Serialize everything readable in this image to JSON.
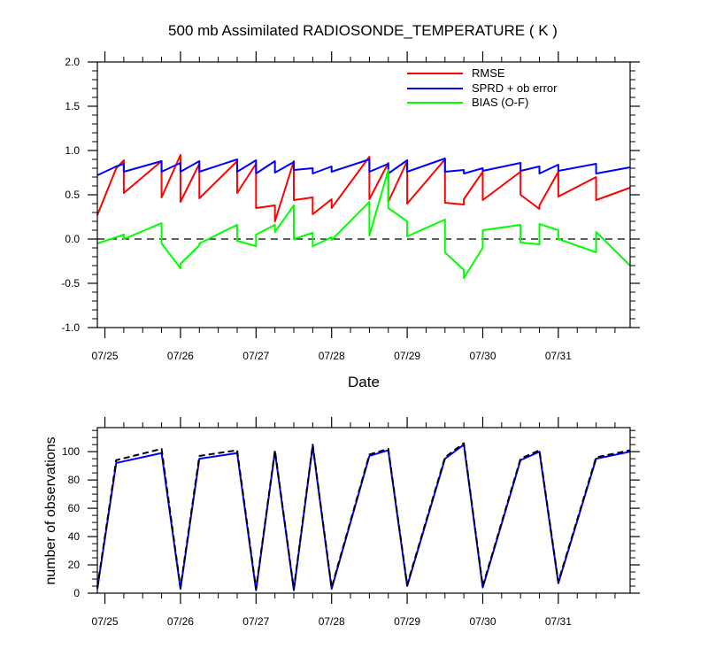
{
  "chart_data": [
    {
      "type": "line",
      "title": "500 mb Assimilated RADIOSONDE_TEMPERATURE ( K )",
      "xlabel": "Date",
      "ylabel": "",
      "xlim": [
        -0.1,
        6.95
      ],
      "ylim": [
        -1.0,
        2.0
      ],
      "yticks": [
        -1.0,
        -0.5,
        0.0,
        0.5,
        1.0,
        1.5,
        2.0
      ],
      "ytick_labels": [
        "-1.0",
        "-0.5",
        "0.0",
        "0.5",
        "1.0",
        "1.5",
        "2.0"
      ],
      "xticks": [
        0,
        1,
        2,
        3,
        4,
        5,
        6
      ],
      "xtick_labels": [
        "07/25",
        "07/26",
        "07/27",
        "07/28",
        "07/29",
        "07/30",
        "07/31"
      ],
      "legend_position": "top-right",
      "zero_line": {
        "style": "dashed",
        "value": 0
      },
      "series": [
        {
          "name": "RMSE",
          "color": "#ff0000",
          "x": [
            -0.1,
            0.15,
            0.25,
            0.25,
            0.75,
            0.75,
            1.0,
            1.0,
            1.25,
            1.25,
            1.75,
            1.75,
            2.0,
            2.0,
            2.25,
            2.25,
            2.5,
            2.5,
            2.75,
            2.75,
            3.0,
            3.0,
            3.5,
            3.5,
            3.75,
            3.75,
            4.0,
            4.0,
            4.5,
            4.5,
            4.75,
            4.75,
            5.0,
            5.0,
            5.5,
            5.5,
            5.75,
            5.75,
            6.0,
            6.0,
            6.5,
            6.5,
            6.95
          ],
          "y": [
            0.27,
            0.8,
            0.89,
            0.52,
            0.88,
            0.47,
            0.95,
            0.42,
            0.85,
            0.46,
            0.88,
            0.52,
            0.85,
            0.35,
            0.38,
            0.2,
            0.88,
            0.44,
            0.47,
            0.28,
            0.45,
            0.35,
            0.93,
            0.45,
            0.86,
            0.42,
            0.88,
            0.4,
            0.9,
            0.41,
            0.39,
            0.45,
            0.76,
            0.44,
            0.76,
            0.5,
            0.34,
            0.38,
            0.76,
            0.48,
            0.7,
            0.44,
            0.58
          ]
        },
        {
          "name": "SPRD + ob error",
          "color": "#0000ff",
          "x": [
            -0.1,
            0.15,
            0.25,
            0.25,
            0.75,
            0.75,
            1.0,
            1.0,
            1.25,
            1.25,
            1.75,
            1.75,
            2.0,
            2.0,
            2.25,
            2.25,
            2.5,
            2.5,
            2.75,
            2.75,
            3.0,
            3.0,
            3.5,
            3.5,
            3.75,
            3.75,
            4.0,
            4.0,
            4.5,
            4.5,
            4.75,
            4.75,
            5.0,
            5.0,
            5.5,
            5.5,
            5.75,
            5.75,
            6.0,
            6.0,
            6.5,
            6.5,
            6.95
          ],
          "y": [
            0.72,
            0.82,
            0.85,
            0.76,
            0.88,
            0.76,
            0.86,
            0.76,
            0.88,
            0.76,
            0.9,
            0.76,
            0.89,
            0.74,
            0.88,
            0.75,
            0.87,
            0.78,
            0.8,
            0.74,
            0.82,
            0.76,
            0.9,
            0.76,
            0.85,
            0.74,
            0.89,
            0.76,
            0.91,
            0.76,
            0.78,
            0.74,
            0.8,
            0.77,
            0.86,
            0.77,
            0.82,
            0.74,
            0.84,
            0.77,
            0.85,
            0.74,
            0.81
          ]
        },
        {
          "name": "BIAS (O-F)",
          "color": "#00ff00",
          "x": [
            -0.1,
            0.15,
            0.25,
            0.25,
            0.75,
            0.75,
            1.0,
            1.0,
            1.25,
            1.25,
            1.75,
            1.75,
            2.0,
            2.0,
            2.25,
            2.25,
            2.5,
            2.5,
            2.75,
            2.75,
            3.0,
            3.0,
            3.5,
            3.5,
            3.75,
            3.75,
            4.0,
            4.0,
            4.5,
            4.5,
            4.75,
            4.75,
            5.0,
            5.0,
            5.5,
            5.5,
            5.75,
            5.75,
            6.0,
            6.0,
            6.5,
            6.5,
            6.95
          ],
          "y": [
            -0.05,
            0.02,
            0.05,
            0.0,
            0.18,
            -0.05,
            -0.33,
            -0.28,
            -0.07,
            -0.05,
            0.16,
            -0.02,
            -0.08,
            0.05,
            0.16,
            0.08,
            0.38,
            0.0,
            0.07,
            -0.08,
            0.02,
            -0.01,
            0.42,
            0.04,
            0.78,
            0.35,
            0.2,
            0.03,
            0.22,
            -0.15,
            -0.35,
            -0.44,
            -0.1,
            0.1,
            0.16,
            -0.04,
            -0.06,
            0.17,
            0.1,
            0.0,
            -0.15,
            0.08,
            -0.3
          ]
        }
      ]
    },
    {
      "type": "line",
      "title": "",
      "xlabel": "",
      "ylabel": "number of observations",
      "xlim": [
        -0.1,
        6.95
      ],
      "ylim": [
        0,
        117
      ],
      "yticks": [
        0,
        20,
        40,
        60,
        80,
        100
      ],
      "ytick_labels": [
        "0",
        "20",
        "40",
        "60",
        "80",
        "100"
      ],
      "xticks": [
        0,
        1,
        2,
        3,
        4,
        5,
        6
      ],
      "xtick_labels": [
        "07/25",
        "07/26",
        "07/27",
        "07/28",
        "07/29",
        "07/30",
        "07/31"
      ],
      "series": [
        {
          "name": "",
          "style": "solid",
          "color": "#0000ff",
          "x": [
            -0.1,
            0.15,
            0.75,
            1.0,
            1.25,
            1.75,
            2.0,
            2.25,
            2.5,
            2.75,
            3.0,
            3.5,
            3.75,
            4.0,
            4.5,
            4.75,
            5.0,
            5.5,
            5.75,
            6.0,
            6.5,
            6.95
          ],
          "y": [
            3,
            92,
            99,
            3,
            95,
            99,
            2,
            100,
            2,
            104,
            3,
            97,
            101,
            5,
            95,
            105,
            4,
            94,
            100,
            7,
            95,
            100
          ]
        },
        {
          "name": "",
          "style": "dashed",
          "color": "#000000",
          "x": [
            -0.1,
            0.15,
            0.75,
            1.0,
            1.25,
            1.75,
            2.0,
            2.25,
            2.5,
            2.75,
            3.0,
            3.5,
            3.75,
            4.0,
            4.5,
            4.75,
            5.0,
            5.5,
            5.75,
            6.0,
            6.5,
            6.95
          ],
          "y": [
            4,
            94,
            102,
            4,
            97,
            101,
            3,
            101,
            3,
            105,
            4,
            98,
            102,
            6,
            96,
            106,
            5,
            95,
            101,
            8,
            96,
            101
          ]
        }
      ]
    }
  ]
}
